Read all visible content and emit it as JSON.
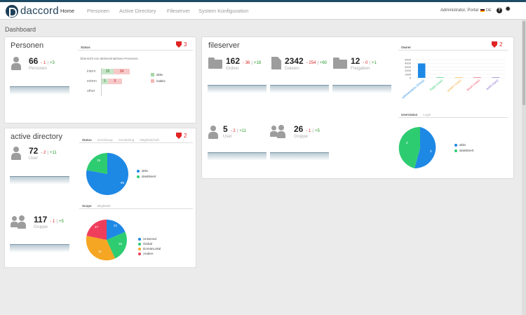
{
  "app": {
    "brand": "daccord"
  },
  "nav": {
    "items": [
      "Home",
      "Personen",
      "Active Directory",
      "Fileserver",
      "System Konfiguration"
    ],
    "user": "Administrator, Portal",
    "lang": "DE"
  },
  "page_title": "Dashboard",
  "personen": {
    "title": "Personen",
    "warn_count": "3",
    "count": "66",
    "neg": "- 1",
    "pos": "+3",
    "label": "Personen",
    "status_tab": "Status",
    "status_text": "Übersicht von aktiven/inaktiven Personen.",
    "rows": [
      {
        "label": "intern",
        "active": "26",
        "inactive": "34"
      },
      {
        "label": "extern",
        "active": "5",
        "inactive": "5"
      },
      {
        "label": "other",
        "active": "",
        "inactive": ""
      }
    ],
    "legend": [
      "aktiv",
      "inaktiv"
    ]
  },
  "ad": {
    "title": "active directory",
    "warn_count": "2",
    "tabs": [
      "Status",
      "Zuordnung",
      "Anmeldung",
      "Mitgliedschaft"
    ],
    "users": {
      "count": "72",
      "neg": "- 2",
      "pos": "+11",
      "label": "User"
    },
    "groups": {
      "count": "117",
      "neg": "- 1",
      "pos": "+5",
      "label": "Gruppe"
    },
    "status_pie": {
      "values": [
        "55",
        "19"
      ],
      "legend": [
        "aktiv",
        "deaktiviert"
      ]
    },
    "scope_tabs": [
      "Scope",
      "Mitglieder"
    ],
    "scope_pie": {
      "values": [
        "22",
        "26",
        "41",
        "27"
      ],
      "legend": [
        "Universal",
        "Global",
        "DomänLokal",
        "Andere"
      ]
    }
  },
  "fileserver": {
    "title": "fileserver",
    "warn_count": "2",
    "ordner": {
      "count": "162",
      "neg": "- 36",
      "pos": "+18",
      "label": "Ordner"
    },
    "dateien": {
      "count": "2342",
      "neg": "- 254",
      "pos": "+60",
      "label": "Dateien"
    },
    "freigaben": {
      "count": "12",
      "neg": "- 0",
      "pos": "+1",
      "label": "Freigaben"
    },
    "users": {
      "count": "5",
      "neg": "- 2",
      "pos": "+11",
      "label": "User"
    },
    "groups": {
      "count": "26",
      "neg": "- 1",
      "pos": "+5",
      "label": "Gruppe"
    },
    "owner_tab": "Owner",
    "owner_ticks": [
      "5000",
      "4000",
      "3000",
      "2000",
      "1000",
      "0"
    ],
    "owner_categories": [
      "administrators (Group)",
      "Ralph (User)",
      "system (User)",
      "kirsch (User)",
      "test3 (User)"
    ],
    "userstatus_tabs": [
      "Userstatus",
      "Login"
    ],
    "status_pie": {
      "values": [
        "3",
        "3"
      ],
      "legend": [
        "aktiv",
        "deaktiviert"
      ]
    }
  },
  "colors": {
    "blue": "#1e88e5",
    "green": "#2ecc71",
    "orange": "#f5a623",
    "red": "#ef3e5c",
    "warn": "#e02424",
    "brand": "#1e3f57"
  },
  "chart_data": [
    {
      "type": "bar",
      "title": "Status",
      "categories": [
        "intern",
        "extern",
        "other"
      ],
      "series": [
        {
          "name": "aktiv",
          "values": [
            26,
            5,
            0
          ]
        },
        {
          "name": "inaktiv",
          "values": [
            34,
            5,
            0
          ]
        }
      ]
    },
    {
      "type": "pie",
      "title": "Status",
      "labels": [
        "aktiv",
        "deaktiviert"
      ],
      "values": [
        55,
        19
      ]
    },
    {
      "type": "pie",
      "title": "Scope",
      "labels": [
        "Universal",
        "Global",
        "DomänLokal",
        "Andere"
      ],
      "values": [
        22,
        26,
        41,
        27
      ]
    },
    {
      "type": "bar",
      "title": "Owner",
      "categories": [
        "administrators (Group)",
        "Ralph (User)",
        "system (User)",
        "kirsch (User)",
        "test3 (User)"
      ],
      "values": [
        3950,
        120,
        20,
        15,
        10
      ],
      "ylim": [
        0,
        5000
      ]
    },
    {
      "type": "pie",
      "title": "Userstatus",
      "labels": [
        "aktiv",
        "deaktiviert"
      ],
      "values": [
        3,
        3
      ]
    }
  ]
}
